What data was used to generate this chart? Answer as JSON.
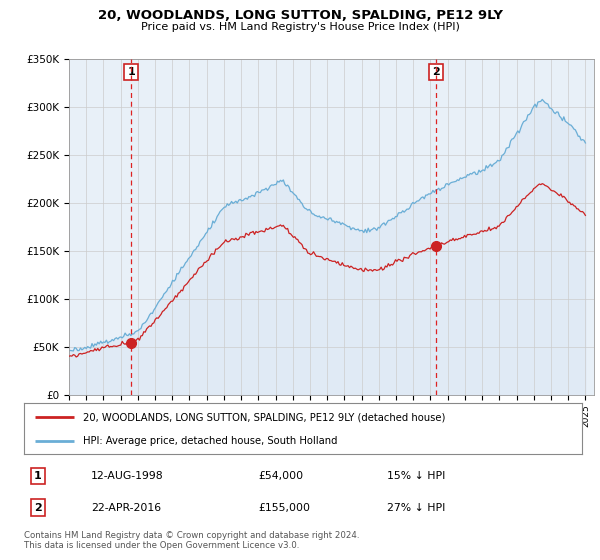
{
  "title": "20, WOODLANDS, LONG SUTTON, SPALDING, PE12 9LY",
  "subtitle": "Price paid vs. HM Land Registry's House Price Index (HPI)",
  "legend_label_red": "20, WOODLANDS, LONG SUTTON, SPALDING, PE12 9LY (detached house)",
  "legend_label_blue": "HPI: Average price, detached house, South Holland",
  "transaction1_label": "1",
  "transaction1_date": "12-AUG-1998",
  "transaction1_price": "£54,000",
  "transaction1_hpi": "15% ↓ HPI",
  "transaction2_label": "2",
  "transaction2_date": "22-APR-2016",
  "transaction2_price": "£155,000",
  "transaction2_hpi": "27% ↓ HPI",
  "footer": "Contains HM Land Registry data © Crown copyright and database right 2024.\nThis data is licensed under the Open Government Licence v3.0.",
  "xmin": 1995.0,
  "xmax": 2025.5,
  "ymin": 0,
  "ymax": 350000,
  "yticks": [
    0,
    50000,
    100000,
    150000,
    200000,
    250000,
    300000,
    350000
  ],
  "ytick_labels": [
    "£0",
    "£50K",
    "£100K",
    "£150K",
    "£200K",
    "£250K",
    "£300K",
    "£350K"
  ],
  "vline1_x": 1998.62,
  "vline2_x": 2016.31,
  "marker1_x": 1998.62,
  "marker1_y": 54000,
  "marker2_x": 2016.31,
  "marker2_y": 155000,
  "color_red": "#cc2222",
  "color_blue": "#6aaed6",
  "color_fill": "#ddeeff",
  "color_vline": "#dd2222",
  "background_color": "#ffffff",
  "grid_color": "#cccccc"
}
